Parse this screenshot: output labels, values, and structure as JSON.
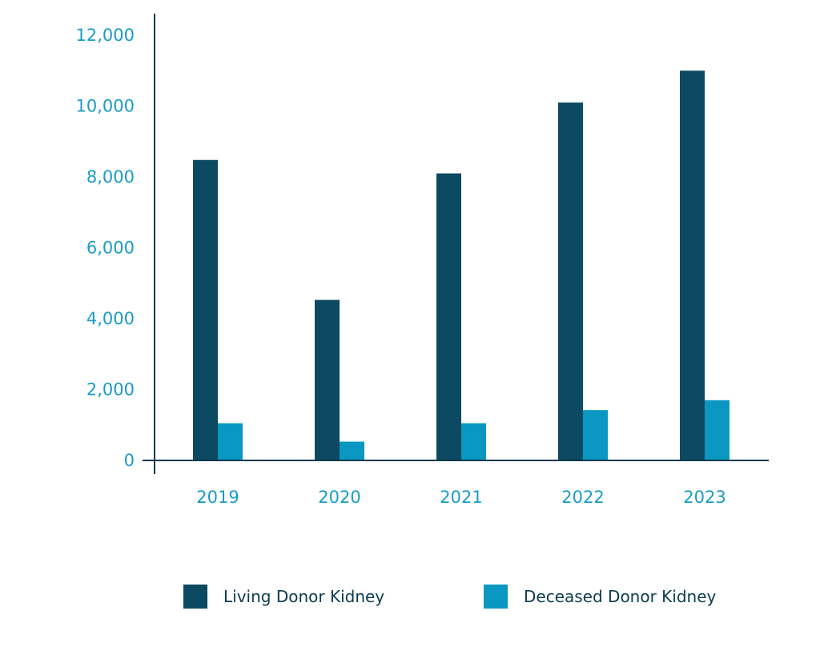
{
  "chart_data": {
    "type": "bar",
    "categories": [
      "2019",
      "2020",
      "2021",
      "2022",
      "2023"
    ],
    "series": [
      {
        "name": "Living Donor Kidney",
        "color": "#0b4a60",
        "values": [
          8480,
          4530,
          8100,
          10100,
          11000
        ]
      },
      {
        "name": "Deceased Donor Kidney",
        "color": "#0a97c2",
        "values": [
          1050,
          530,
          1050,
          1420,
          1700
        ]
      }
    ],
    "y_ticks": [
      "0",
      "2,000",
      "4,000",
      "6,000",
      "8,000",
      "10,000",
      "12,000"
    ],
    "ylim": [
      0,
      12000
    ],
    "grid": false,
    "legend_position": "bottom",
    "axis_color": "#0b3b4f",
    "tick_color": "#1a9cc6"
  }
}
